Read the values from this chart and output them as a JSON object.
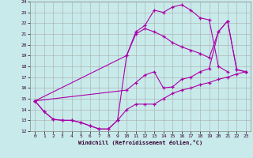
{
  "bg_color": "#c8eaea",
  "grid_color": "#aaaaaa",
  "line_color": "#aa00aa",
  "xlabel": "Windchill (Refroidissement éolien,°C)",
  "xlim": [
    -0.5,
    23.5
  ],
  "ylim": [
    12,
    24
  ],
  "xticks": [
    0,
    1,
    2,
    3,
    4,
    5,
    6,
    7,
    8,
    9,
    10,
    11,
    12,
    13,
    14,
    15,
    16,
    17,
    18,
    19,
    20,
    21,
    22,
    23
  ],
  "yticks": [
    12,
    13,
    14,
    15,
    16,
    17,
    18,
    19,
    20,
    21,
    22,
    23,
    24
  ],
  "lines": [
    {
      "x": [
        0,
        1,
        2,
        3,
        4,
        5,
        6,
        7,
        8,
        9,
        10,
        11,
        12,
        13,
        14,
        15,
        16,
        17,
        18,
        19,
        20,
        21,
        22,
        23
      ],
      "y": [
        14.8,
        13.8,
        13.1,
        13.0,
        13.0,
        12.8,
        12.5,
        12.2,
        12.2,
        13.0,
        14.0,
        14.5,
        14.5,
        14.5,
        15.0,
        15.5,
        15.8,
        16.0,
        16.3,
        16.5,
        16.8,
        17.0,
        17.3,
        17.5
      ]
    },
    {
      "x": [
        0,
        1,
        2,
        3,
        4,
        5,
        6,
        7,
        8,
        9,
        10,
        11,
        12,
        13,
        14,
        15,
        16,
        17,
        18,
        19,
        20,
        21
      ],
      "y": [
        14.8,
        13.8,
        13.1,
        13.0,
        13.0,
        12.8,
        12.5,
        12.2,
        12.2,
        13.0,
        19.0,
        21.2,
        21.8,
        23.2,
        23.0,
        23.5,
        23.7,
        23.2,
        22.5,
        22.3,
        18.0,
        17.5
      ]
    },
    {
      "x": [
        0,
        10,
        11,
        12,
        13,
        14,
        15,
        16,
        17,
        18,
        19,
        20,
        21,
        22,
        23
      ],
      "y": [
        14.8,
        15.8,
        16.5,
        17.2,
        17.5,
        16.0,
        16.1,
        16.8,
        17.0,
        17.5,
        17.8,
        21.2,
        22.2,
        17.7,
        17.5
      ]
    },
    {
      "x": [
        0,
        10,
        11,
        12,
        13,
        14,
        15,
        16,
        17,
        18,
        19,
        20,
        21,
        22,
        23
      ],
      "y": [
        14.8,
        19.0,
        21.0,
        21.5,
        21.2,
        20.8,
        20.2,
        19.8,
        19.5,
        19.2,
        18.8,
        21.2,
        22.2,
        17.7,
        17.5
      ]
    }
  ]
}
